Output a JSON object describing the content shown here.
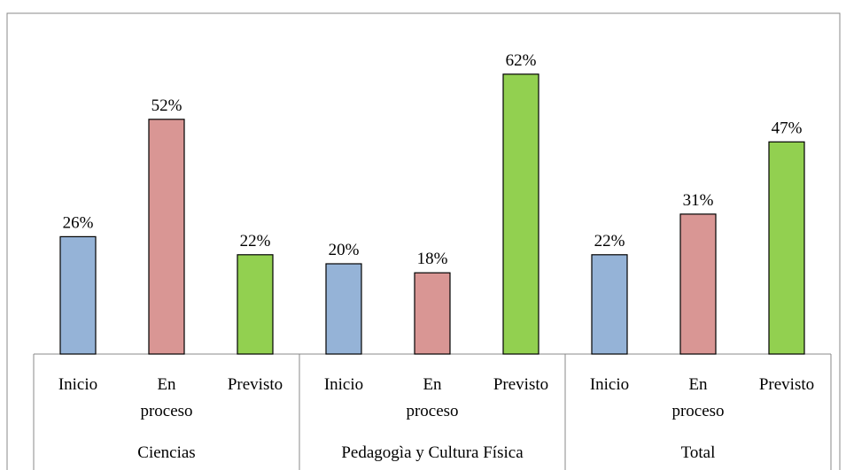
{
  "chart_data": {
    "type": "bar",
    "groups": [
      {
        "name": "Ciencias",
        "categories": [
          "Inicio",
          "En proceso",
          "Previsto"
        ],
        "values": [
          26,
          52,
          22
        ],
        "value_labels": [
          "26%",
          "52%",
          "22%"
        ]
      },
      {
        "name": "Pedagogìa y Cultura Física",
        "categories": [
          "Inicio",
          "En proceso",
          "Previsto"
        ],
        "values": [
          20,
          18,
          62
        ],
        "value_labels": [
          "20%",
          "18%",
          "62%"
        ]
      },
      {
        "name": "Total",
        "categories": [
          "Inicio",
          "En proceso",
          "Previsto"
        ],
        "values": [
          22,
          31,
          47
        ],
        "value_labels": [
          "22%",
          "31%",
          "47%"
        ]
      }
    ],
    "colors": [
      "#95b3d7",
      "#d99694",
      "#92d050"
    ],
    "ylim": [
      0,
      70
    ]
  }
}
